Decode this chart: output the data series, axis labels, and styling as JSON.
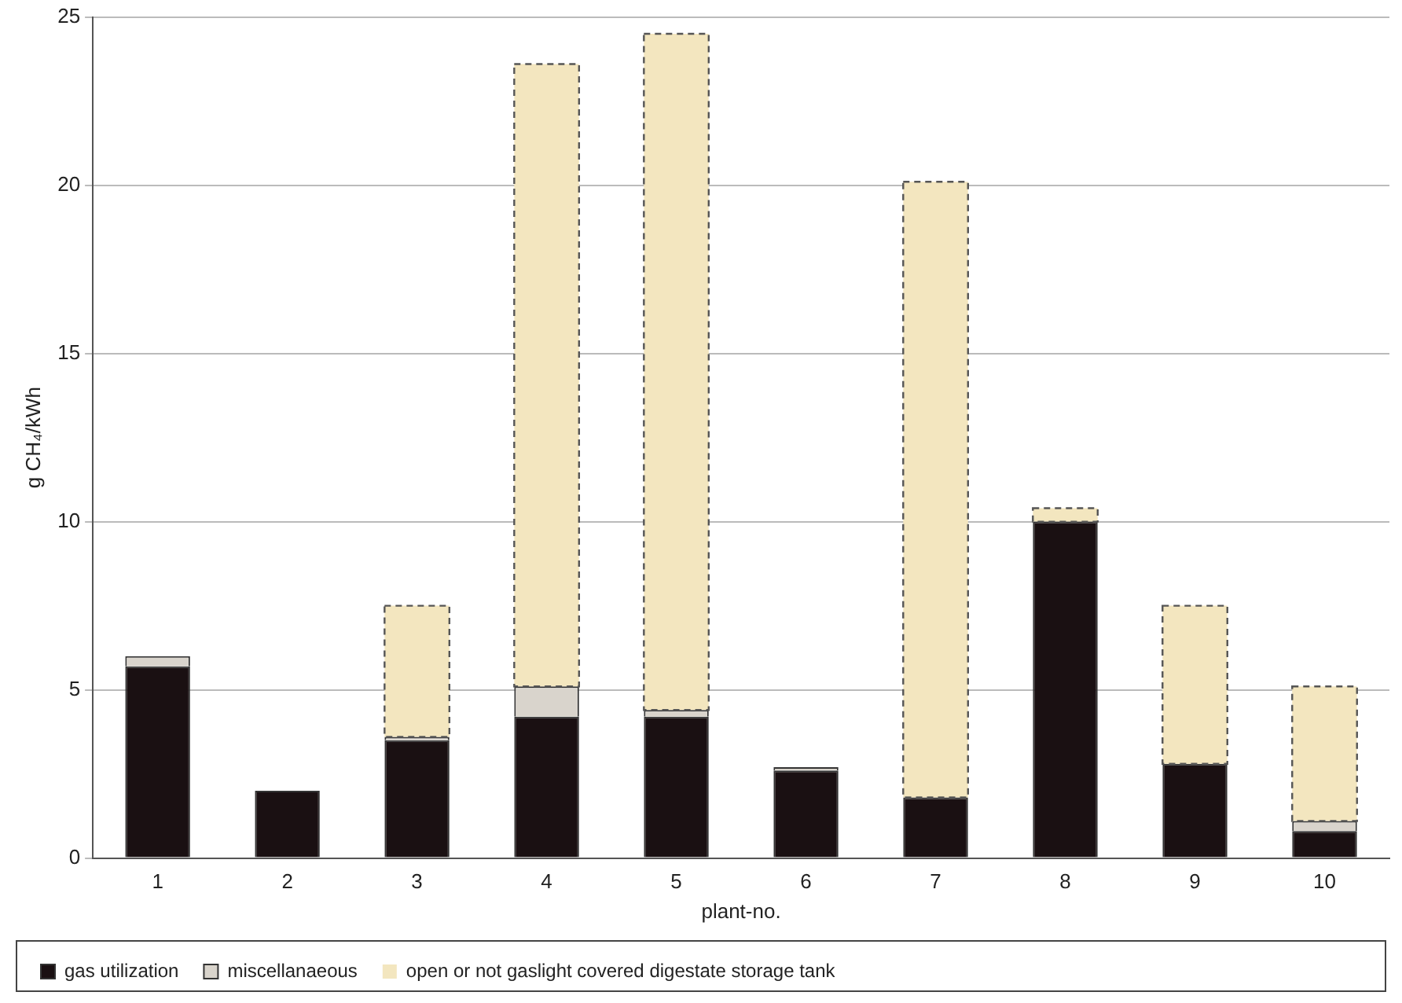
{
  "chart_data": {
    "type": "bar",
    "stacked": true,
    "xlabel": "plant-no.",
    "ylabel": "g CH₄/kWh",
    "categories": [
      "1",
      "2",
      "3",
      "4",
      "5",
      "6",
      "7",
      "8",
      "9",
      "10"
    ],
    "series": [
      {
        "name": "gas utilization",
        "color": "#1a1012",
        "values": [
          5.7,
          2.0,
          3.5,
          4.2,
          4.2,
          2.6,
          1.8,
          10.0,
          2.8,
          0.8
        ]
      },
      {
        "name": "miscellanaeous",
        "color": "#d9d4cc",
        "values": [
          0.3,
          0,
          0.1,
          0.9,
          0.2,
          0.1,
          0,
          0,
          0,
          0.3
        ]
      },
      {
        "name": "open or not gaslight covered digestate storage tank",
        "color": "#f3e6bf",
        "line_style": "dashed",
        "values": [
          0,
          0,
          3.9,
          18.5,
          20.1,
          0,
          18.3,
          0.4,
          4.7,
          4.0
        ]
      }
    ],
    "ylim": [
      0,
      25
    ],
    "yticks": [
      0,
      5,
      10,
      15,
      20,
      25
    ],
    "grid": "y",
    "legend": "bottom"
  }
}
